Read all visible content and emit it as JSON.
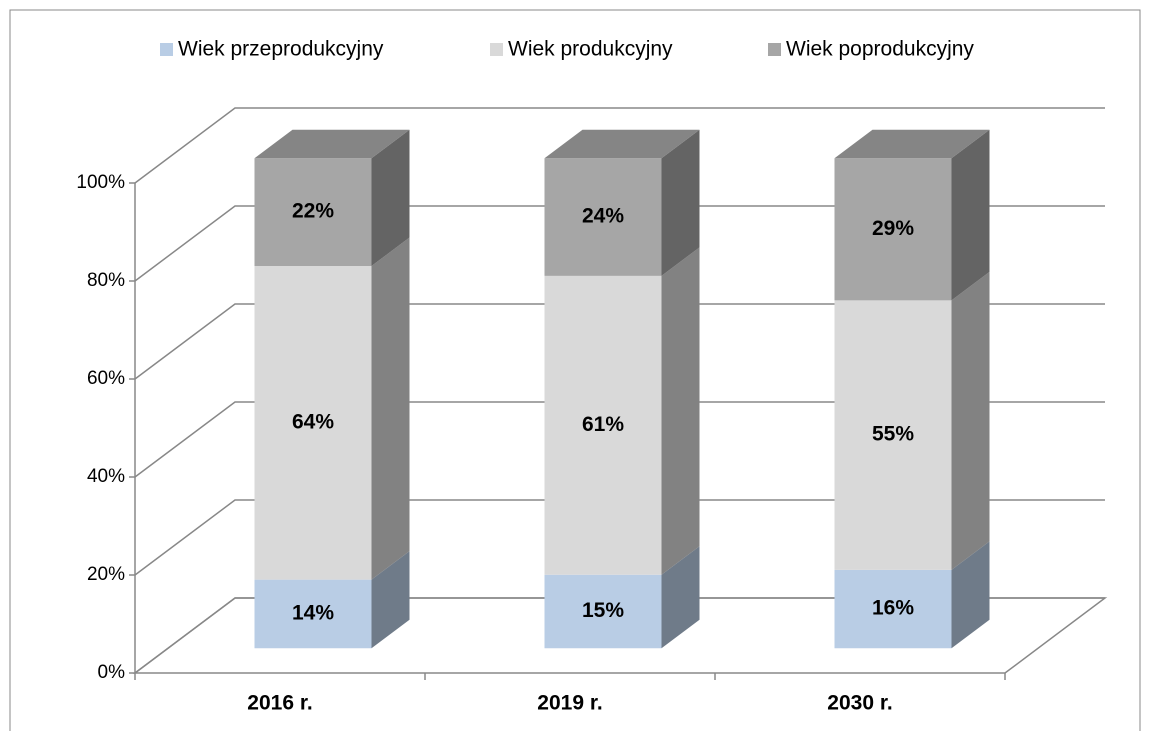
{
  "chart_data": {
    "type": "bar3d_stacked_percent",
    "categories": [
      "2016 r.",
      "2019 r.",
      "2030 r."
    ],
    "series": [
      {
        "name": "Wiek przeprodukcyjny",
        "color": "#b9cde5",
        "values": [
          14,
          15,
          16
        ],
        "value_labels": [
          "14%",
          "15%",
          "16%"
        ]
      },
      {
        "name": "Wiek produkcyjny",
        "color": "#d9d9d9",
        "values": [
          64,
          61,
          55
        ],
        "value_labels": [
          "64%",
          "61%",
          "55%"
        ]
      },
      {
        "name": "Wiek poprodukcyjny",
        "color": "#a6a6a6",
        "values": [
          22,
          24,
          29
        ],
        "value_labels": [
          "22%",
          "24%",
          "29%"
        ]
      }
    ],
    "ylim": [
      0,
      100
    ],
    "yticks": [
      {
        "value": 0,
        "label": "0%"
      },
      {
        "value": 20,
        "label": "20%"
      },
      {
        "value": 40,
        "label": "40%"
      },
      {
        "value": 60,
        "label": "60%"
      },
      {
        "value": 80,
        "label": "80%"
      },
      {
        "value": 100,
        "label": "100%"
      }
    ],
    "grid": true,
    "legend": "top"
  }
}
